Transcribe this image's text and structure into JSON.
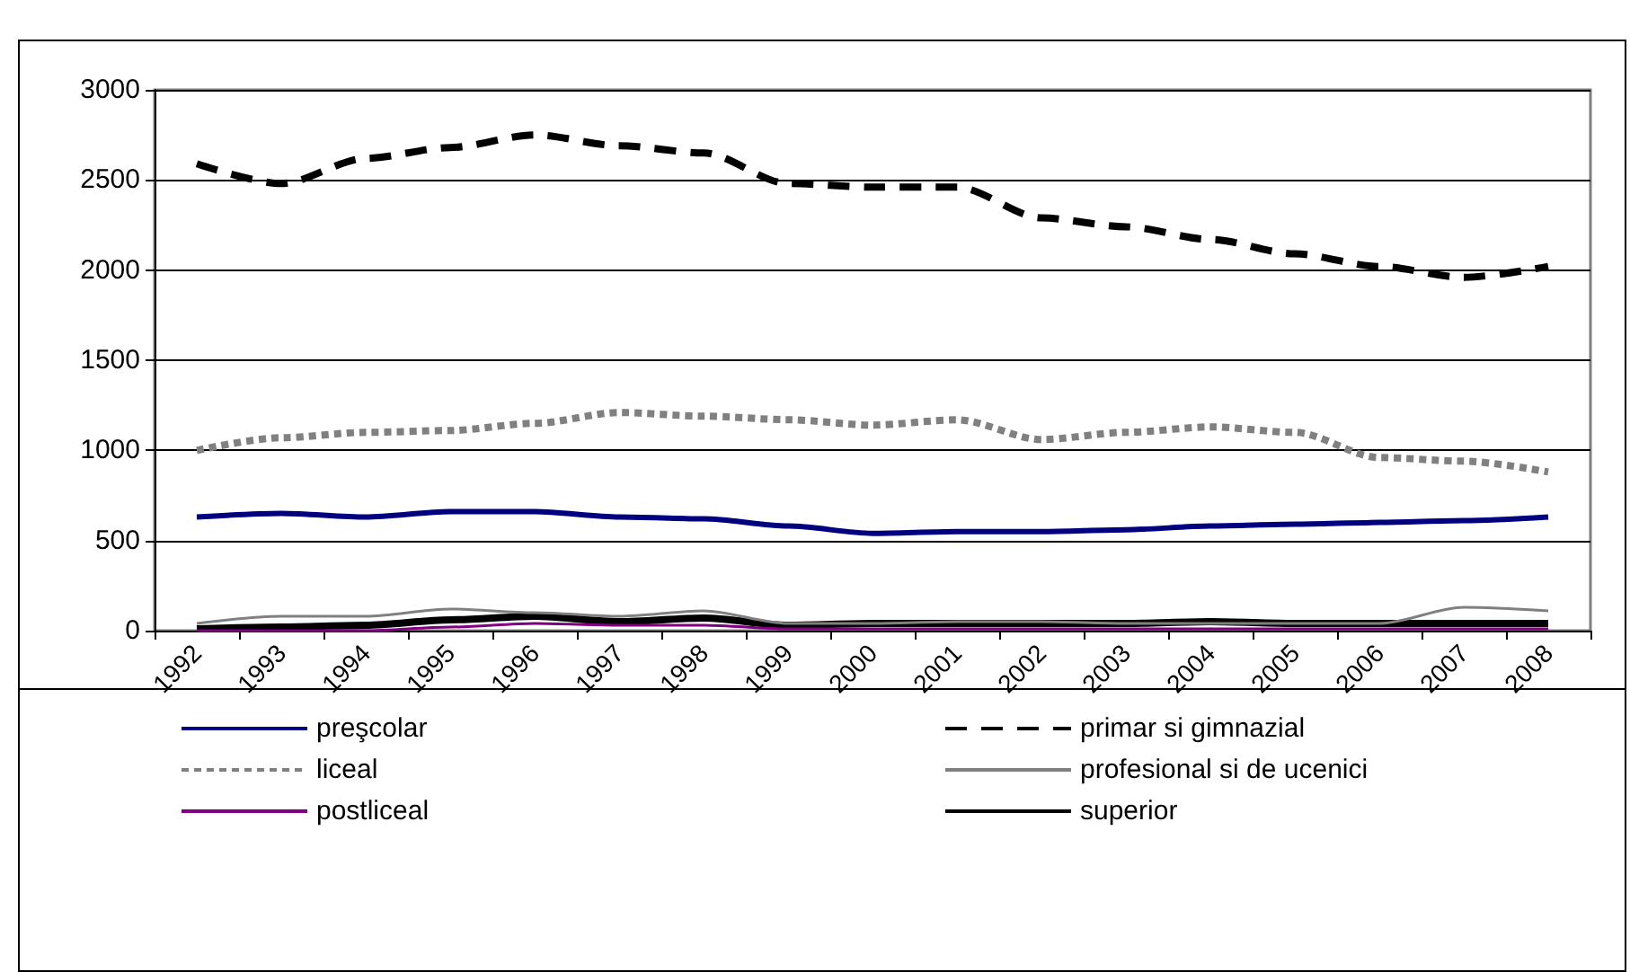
{
  "chart_data": {
    "type": "line",
    "categories": [
      "1992",
      "1993",
      "1994",
      "1995",
      "1996",
      "1997",
      "1998",
      "1999",
      "2000",
      "2001",
      "2002",
      "2003",
      "2004",
      "2005",
      "2006",
      "2007",
      "2008"
    ],
    "series": [
      {
        "name": "preşcolar",
        "color": "#000080",
        "line_style": "solid",
        "values": [
          630,
          650,
          630,
          660,
          660,
          630,
          620,
          580,
          540,
          550,
          550,
          560,
          580,
          590,
          600,
          610,
          630
        ]
      },
      {
        "name": "primar si gimnazial",
        "color": "#000000",
        "line_style": "dashed",
        "values": [
          2590,
          2480,
          2620,
          2680,
          2750,
          2690,
          2650,
          2480,
          2460,
          2460,
          2290,
          2240,
          2170,
          2090,
          2020,
          1960,
          2020
        ]
      },
      {
        "name": "liceal",
        "color": "#808080",
        "line_style": "dotted",
        "values": [
          1000,
          1070,
          1100,
          1110,
          1150,
          1210,
          1190,
          1170,
          1140,
          1170,
          1060,
          1100,
          1130,
          1100,
          960,
          940,
          880
        ]
      },
      {
        "name": "profesional si de ucenici",
        "color": "#808080",
        "line_style": "solid",
        "values": [
          40,
          80,
          80,
          120,
          100,
          80,
          110,
          40,
          40,
          50,
          50,
          40,
          40,
          40,
          40,
          130,
          110
        ]
      },
      {
        "name": "postliceal",
        "color": "#800080",
        "line_style": "solid",
        "values": [
          0,
          0,
          0,
          20,
          40,
          30,
          30,
          10,
          10,
          10,
          10,
          10,
          10,
          10,
          10,
          10,
          10
        ]
      },
      {
        "name": "superior",
        "color": "#000000",
        "line_style": "solid",
        "values": [
          10,
          20,
          30,
          60,
          80,
          50,
          70,
          30,
          40,
          40,
          40,
          40,
          50,
          40,
          40,
          40,
          40
        ]
      }
    ],
    "ylim": [
      0,
      3000
    ],
    "yticks": [
      0,
      500,
      1000,
      1500,
      2000,
      2500,
      3000
    ],
    "grid": "y",
    "legend": "bottom",
    "marker": "none"
  }
}
